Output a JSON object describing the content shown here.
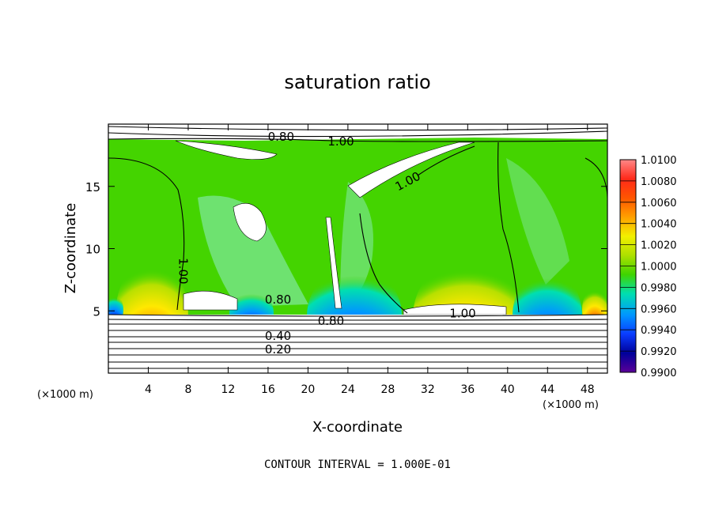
{
  "chart_data": {
    "type": "heatmap",
    "title": "saturation ratio",
    "xlabel": "X-coordinate",
    "ylabel": "Z-coordinate",
    "x_unit": "(×1000 m)",
    "z_unit": "(×1000 m)",
    "xlim": [
      0,
      50
    ],
    "ylim": [
      0,
      20
    ],
    "x_ticks": [
      4,
      8,
      12,
      16,
      20,
      24,
      28,
      32,
      36,
      40,
      44,
      48
    ],
    "y_ticks": [
      5,
      10,
      15
    ],
    "colorbar": {
      "ticks": [
        "1.0100",
        "1.0080",
        "1.0060",
        "1.0040",
        "1.0020",
        "1.0000",
        "0.9980",
        "0.9960",
        "0.9940",
        "0.9920",
        "0.9900"
      ],
      "colors": [
        "#ff6a6a",
        "#ff1a1a",
        "#ff5a00",
        "#ffa500",
        "#ffee00",
        "#b8e000",
        "#44d400",
        "#00e0b0",
        "#0096ff",
        "#0a3cff",
        "#00009a",
        "#5a0098"
      ]
    },
    "contour_labels": [
      {
        "text": "0.80",
        "x": 17.3,
        "z": 19.0
      },
      {
        "text": "1.00",
        "x": 23.3,
        "z": 18.6
      },
      {
        "text": "1.00",
        "x": 30.0,
        "z": 15.4
      },
      {
        "text": "1.00",
        "x": 7.5,
        "z": 8.2
      },
      {
        "text": "0.80",
        "x": 17.0,
        "z": 5.9
      },
      {
        "text": "0.80",
        "x": 22.3,
        "z": 4.2
      },
      {
        "text": "1.00",
        "x": 35.5,
        "z": 4.8
      },
      {
        "text": "0.40",
        "x": 17.0,
        "z": 3.0
      },
      {
        "text": "0.20",
        "x": 17.0,
        "z": 1.9
      }
    ],
    "contour_interval_label": "CONTOUR INTERVAL = 1.000E-01"
  }
}
